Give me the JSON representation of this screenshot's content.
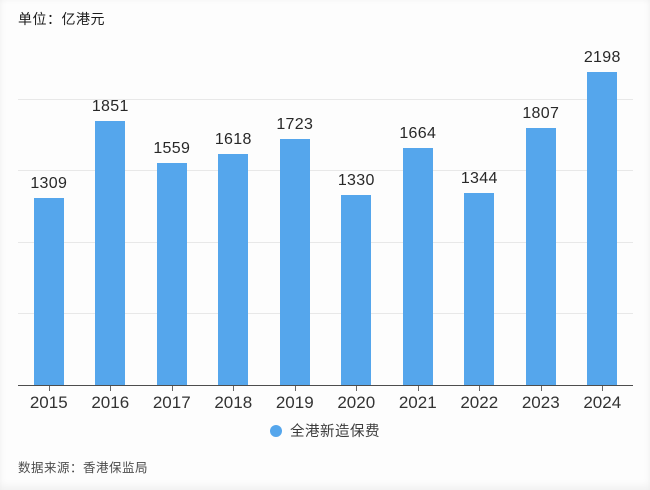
{
  "unit_label": "单位：亿港元",
  "source_note": "数据来源：香港保监局",
  "legend": {
    "label": "全港新造保费",
    "color": "#55a6ec"
  },
  "colors": {
    "bar": "#55a6ec",
    "gridline": "#e8e8e8",
    "axis": "#4d4d4d",
    "value_text": "#282828",
    "axis_text": "#333333"
  },
  "chart_data": {
    "type": "bar",
    "title": "单位：亿港元",
    "categories": [
      "2015",
      "2016",
      "2017",
      "2018",
      "2019",
      "2020",
      "2021",
      "2022",
      "2023",
      "2024"
    ],
    "values": [
      1309,
      1851,
      1559,
      1618,
      1723,
      1330,
      1664,
      1344,
      1807,
      2198
    ],
    "series_name": "全港新造保费",
    "unit": "亿港元",
    "xlabel": "",
    "ylabel": "",
    "ylim": [
      0,
      2250
    ],
    "gridline_values": [
      500,
      1000,
      1500,
      2000
    ],
    "y_tick_labels_visible": false,
    "grid": true,
    "legend_position": "bottom",
    "bar_color": "#55a6ec"
  }
}
